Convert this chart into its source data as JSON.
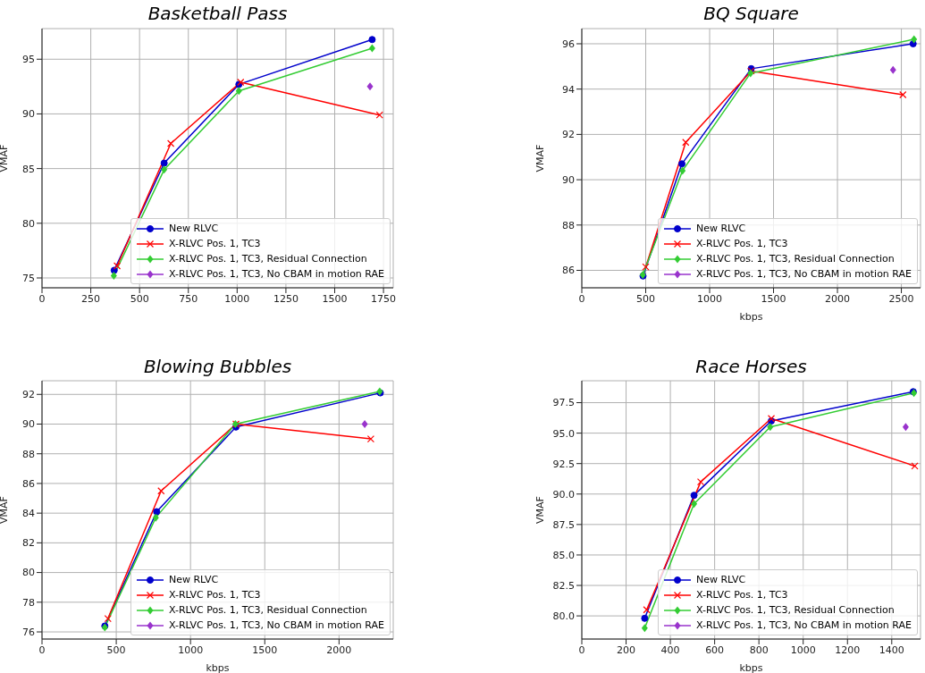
{
  "chart_data": [
    {
      "type": "line",
      "title": "Basketball Pass",
      "ylabel": "VMAF",
      "xlim": [
        0,
        1800
      ],
      "ylim": [
        74.1,
        97.8
      ],
      "xticks": [
        0,
        250,
        500,
        750,
        1000,
        1250,
        1500,
        1750
      ],
      "yticks": [
        75,
        80,
        85,
        90,
        95
      ],
      "grid": true,
      "legend": "bottom right",
      "series": [
        {
          "name": "New RLVC",
          "color": "#0000cc",
          "marker": "circle",
          "x": [
            370,
            626,
            1009,
            1692
          ],
          "values": [
            75.7,
            85.5,
            92.7,
            96.8
          ]
        },
        {
          "name": "X-RLVC Pos. 1, TC3",
          "color": "#ff0000",
          "marker": "cross",
          "x": [
            385,
            660,
            1018,
            1730
          ],
          "values": [
            76.1,
            87.3,
            92.9,
            89.9
          ]
        },
        {
          "name": "X-RLVC Pos. 1, TC3, Residual Connection",
          "color": "#33cc33",
          "marker": "diamond",
          "x": [
            368,
            626,
            1009,
            1692
          ],
          "values": [
            75.2,
            84.9,
            92.1,
            96.0
          ]
        },
        {
          "name": "X-RLVC Pos. 1, TC3, No CBAM in motion RAE",
          "color": "#9933cc",
          "marker": "diamond",
          "x": [
            1681
          ],
          "values": [
            92.5
          ]
        }
      ]
    },
    {
      "type": "line",
      "title": "BQ Square",
      "xlabel": "kbps",
      "ylabel": "VMAF",
      "xlim": [
        0,
        2650
      ],
      "ylim": [
        85.23,
        96.67
      ],
      "xticks": [
        0,
        500,
        1000,
        1500,
        2000,
        2500
      ],
      "yticks": [
        86,
        88,
        90,
        92,
        94,
        96
      ],
      "grid": true,
      "legend": "bottom right",
      "series": [
        {
          "name": "New RLVC",
          "color": "#0000cc",
          "marker": "circle",
          "x": [
            479,
            783,
            1325,
            2592
          ],
          "values": [
            85.75,
            90.7,
            94.9,
            96.0
          ]
        },
        {
          "name": "X-RLVC Pos. 1, TC3",
          "color": "#ff0000",
          "marker": "cross",
          "x": [
            500,
            813,
            1325,
            2512
          ],
          "values": [
            86.15,
            91.65,
            94.8,
            93.75
          ]
        },
        {
          "name": "X-RLVC Pos. 1, TC3, Residual Connection",
          "color": "#33cc33",
          "marker": "diamond",
          "x": [
            477,
            788,
            1320,
            2599
          ],
          "values": [
            85.8,
            90.4,
            94.7,
            96.2
          ]
        },
        {
          "name": "X-RLVC Pos. 1, TC3, No CBAM in motion RAE",
          "color": "#9933cc",
          "marker": "diamond",
          "x": [
            2435
          ],
          "values": [
            94.85
          ]
        }
      ]
    },
    {
      "type": "line",
      "title": "Blowing Bubbles",
      "xlabel": "kbps",
      "ylabel": "VMAF",
      "xlim": [
        0,
        2365
      ],
      "ylim": [
        75.52,
        92.92
      ],
      "xticks": [
        0,
        500,
        1000,
        1500,
        2000
      ],
      "yticks": [
        76,
        78,
        80,
        82,
        84,
        86,
        88,
        90,
        92
      ],
      "grid": true,
      "legend": "bottom right",
      "series": [
        {
          "name": "New RLVC",
          "color": "#0000cc",
          "marker": "circle",
          "x": [
            423,
            772,
            1306,
            2278
          ],
          "values": [
            76.4,
            84.1,
            89.8,
            92.1
          ]
        },
        {
          "name": "X-RLVC Pos. 1, TC3",
          "color": "#ff0000",
          "marker": "cross",
          "x": [
            444,
            802,
            1306,
            2214
          ],
          "values": [
            76.9,
            85.5,
            90.0,
            89.0
          ]
        },
        {
          "name": "X-RLVC Pos. 1, TC3, Residual Connection",
          "color": "#33cc33",
          "marker": "diamond",
          "x": [
            423,
            766,
            1302,
            2274
          ],
          "values": [
            76.3,
            83.7,
            90.0,
            92.2
          ]
        },
        {
          "name": "X-RLVC Pos. 1, TC3, No CBAM in motion RAE",
          "color": "#9933cc",
          "marker": "diamond",
          "x": [
            2173
          ],
          "values": [
            90.0
          ]
        }
      ]
    },
    {
      "type": "line",
      "title": "Race Horses",
      "xlabel": "kbps",
      "ylabel": "VMAF",
      "xlim": [
        0,
        1530
      ],
      "ylim": [
        78.1,
        99.3
      ],
      "xticks": [
        0,
        200,
        400,
        600,
        800,
        1000,
        1200,
        1400
      ],
      "yticks": [
        {
          "value": 80,
          "label": "80.0"
        },
        {
          "value": 82.5,
          "label": "82.5"
        },
        {
          "value": 85,
          "label": "85.0"
        },
        {
          "value": 87.5,
          "label": "87.5"
        },
        {
          "value": 90,
          "label": "90.0"
        },
        {
          "value": 92.5,
          "label": "92.5"
        },
        {
          "value": 95,
          "label": "95.0"
        },
        {
          "value": 97.5,
          "label": "97.5"
        }
      ],
      "grid": true,
      "legend": "bottom right",
      "series": [
        {
          "name": "New RLVC",
          "color": "#0000cc",
          "marker": "circle",
          "x": [
            284,
            507,
            856,
            1497
          ],
          "values": [
            79.8,
            89.9,
            96.0,
            98.4
          ]
        },
        {
          "name": "X-RLVC Pos. 1, TC3",
          "color": "#ff0000",
          "marker": "cross",
          "x": [
            293,
            537,
            856,
            1504
          ],
          "values": [
            80.5,
            91.0,
            96.2,
            92.3
          ]
        },
        {
          "name": "X-RLVC Pos. 1, TC3, Residual Connection",
          "color": "#33cc33",
          "marker": "diamond",
          "x": [
            284,
            507,
            851,
            1500
          ],
          "values": [
            79.0,
            89.2,
            95.5,
            98.3
          ]
        },
        {
          "name": "X-RLVC Pos. 1, TC3, No CBAM in motion RAE",
          "color": "#9933cc",
          "marker": "diamond",
          "x": [
            1463
          ],
          "values": [
            95.5
          ]
        }
      ]
    }
  ]
}
